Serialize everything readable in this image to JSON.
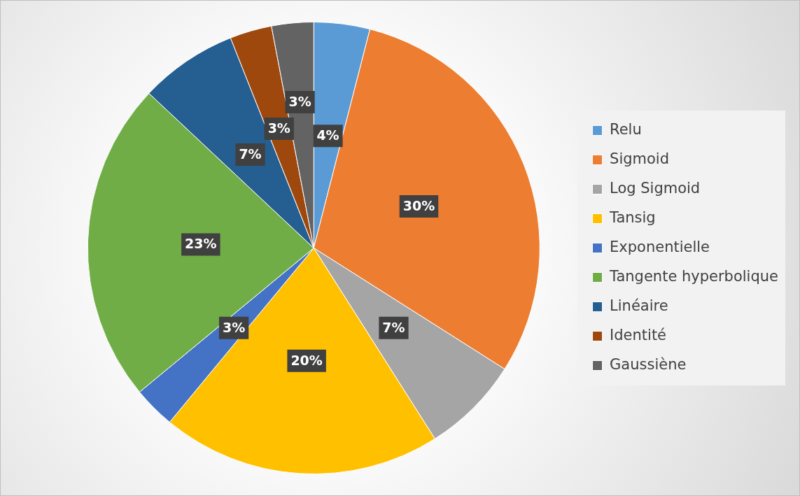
{
  "chart_data": {
    "type": "pie",
    "categories": [
      "Relu",
      "Sigmoid",
      "Log Sigmoid",
      "Tansig",
      "Exponentielle",
      "Tangente hyperbolique",
      "Linéaire",
      "Identité",
      "Gaussiène"
    ],
    "values": [
      4,
      30,
      7,
      20,
      3,
      23,
      7,
      3,
      3
    ],
    "value_labels": [
      "4%",
      "30%",
      "7%",
      "20%",
      "3%",
      "23%",
      "7%",
      "3%",
      "3%"
    ],
    "colors": [
      "#5b9bd5",
      "#ed7d31",
      "#a5a5a5",
      "#ffc000",
      "#4472c4",
      "#70ad47",
      "#255e91",
      "#9e480e",
      "#636363"
    ],
    "legend": "right"
  }
}
